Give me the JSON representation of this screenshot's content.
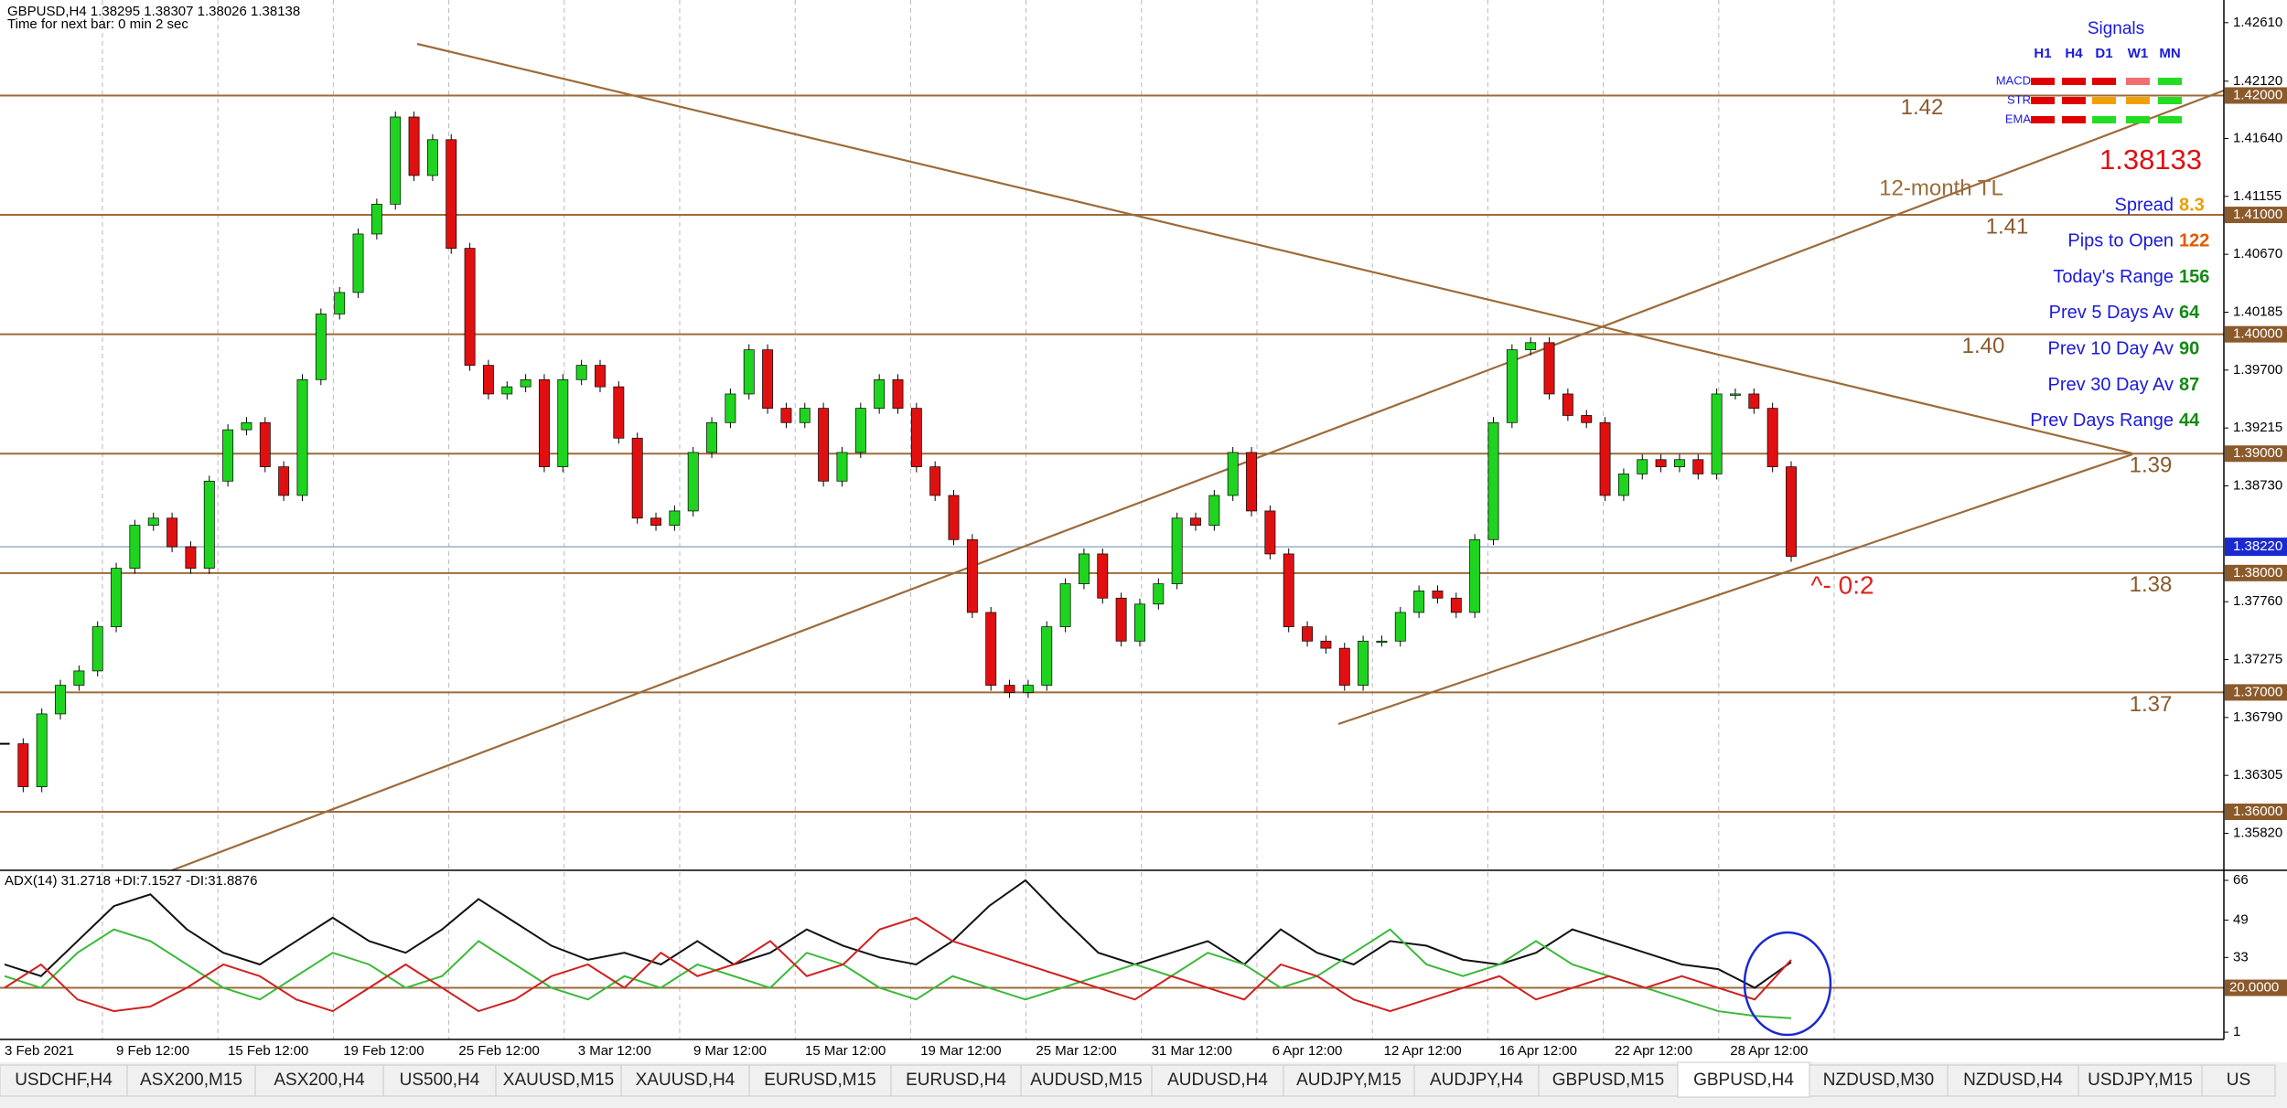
{
  "header": {
    "symbol_line": "GBPUSD,H4  1.38295 1.38307 1.38026 1.38138",
    "timer": "Time for next bar: 0 min 2 sec"
  },
  "price": {
    "ylim": [
      1.3551,
      1.428
    ],
    "yticks": [
      {
        "value": 1.4261,
        "label": "1.42610"
      },
      {
        "value": 1.4212,
        "label": "1.42120"
      },
      {
        "value": 1.4164,
        "label": "1.41640"
      },
      {
        "value": 1.41155,
        "label": "1.41155"
      },
      {
        "value": 1.4067,
        "label": "1.40670"
      },
      {
        "value": 1.40185,
        "label": "1.40185"
      },
      {
        "value": 1.397,
        "label": "1.39700"
      },
      {
        "value": 1.39215,
        "label": "1.39215"
      },
      {
        "value": 1.3873,
        "label": "1.38730"
      },
      {
        "value": 1.3776,
        "label": "1.37760"
      },
      {
        "value": 1.37275,
        "label": "1.37275"
      },
      {
        "value": 1.3679,
        "label": "1.36790"
      },
      {
        "value": 1.36305,
        "label": "1.36305"
      },
      {
        "value": 1.3582,
        "label": "1.35820"
      }
    ],
    "levels": [
      {
        "value": 1.42,
        "label": "1.42000",
        "note": "1.42"
      },
      {
        "value": 1.41,
        "label": "1.41000",
        "note": "1.41"
      },
      {
        "value": 1.4,
        "label": "1.40000",
        "note": "1.40"
      },
      {
        "value": 1.39,
        "label": "1.39000",
        "note": "1.39"
      },
      {
        "value": 1.38,
        "label": "1.38000",
        "note": "1.38"
      },
      {
        "value": 1.37,
        "label": "1.37000",
        "note": "1.37"
      },
      {
        "value": 1.36,
        "label": "1.36000"
      }
    ],
    "quote": {
      "value": 1.3822,
      "label": "1.38220"
    },
    "closes": [
      1.3657,
      1.3621,
      1.3682,
      1.3706,
      1.3718,
      1.3755,
      1.3804,
      1.384,
      1.3846,
      1.3822,
      1.3804,
      1.3877,
      1.392,
      1.3926,
      1.3889,
      1.3865,
      1.3962,
      1.4017,
      1.4035,
      1.4084,
      1.4109,
      1.4182,
      1.4133,
      1.4163,
      1.4072,
      1.3974,
      1.395,
      1.3956,
      1.3962,
      1.3889,
      1.3962,
      1.3974,
      1.3956,
      1.3913,
      1.3846,
      1.384,
      1.3852,
      1.3901,
      1.3926,
      1.395,
      1.3987,
      1.3938,
      1.3926,
      1.3938,
      1.3877,
      1.3901,
      1.3938,
      1.3962,
      1.3938,
      1.3889,
      1.3865,
      1.3828,
      1.3767,
      1.3706,
      1.37,
      1.3706,
      1.3755,
      1.3791,
      1.3816,
      1.3779,
      1.3743,
      1.3774,
      1.3791,
      1.3846,
      1.384,
      1.3865,
      1.3901,
      1.3852,
      1.3816,
      1.3755,
      1.3743,
      1.3737,
      1.3706,
      1.3743,
      1.3743,
      1.3767,
      1.3785,
      1.3779,
      1.3767,
      1.3828,
      1.3926,
      1.3987,
      1.3993,
      1.395,
      1.3932,
      1.3926,
      1.3865,
      1.3883,
      1.3895,
      1.3889,
      1.3895,
      1.3883,
      1.395,
      1.395,
      1.3938,
      1.3889,
      1.3814
    ]
  },
  "annotations": {
    "trendline": "12-month TL",
    "ratio": "^- 0:2"
  },
  "time_labels": [
    "3 Feb 2021",
    "9 Feb 12:00",
    "15 Feb 12:00",
    "19 Feb 12:00",
    "25 Feb 12:00",
    "3 Mar 12:00",
    "9 Mar 12:00",
    "15 Mar 12:00",
    "19 Mar 12:00",
    "25 Mar 12:00",
    "31 Mar 12:00",
    "6 Apr 12:00",
    "12 Apr 12:00",
    "16 Apr 12:00",
    "22 Apr 12:00",
    "28 Apr 12:00"
  ],
  "info": {
    "current_price": 1.38133,
    "rows": [
      {
        "label": "Spread",
        "value": 8.3,
        "color": "#e8a000"
      },
      {
        "label": "Pips to Open",
        "value": 122,
        "color": "#e05a00"
      },
      {
        "label": "Today's Range",
        "value": 156,
        "color": "#138a13"
      },
      {
        "label": "Prev 5 Days Av",
        "value": 64,
        "color": "#138a13"
      },
      {
        "label": "Prev 10 Day Av",
        "value": 90,
        "color": "#138a13"
      },
      {
        "label": "Prev 30 Day Av",
        "value": 87,
        "color": "#138a13"
      },
      {
        "label": "Prev Days Range",
        "value": 44,
        "color": "#138a13"
      }
    ]
  },
  "signals": {
    "title": "Signals",
    "columns": [
      "H1",
      "H4",
      "D1",
      "W1",
      "MN"
    ],
    "rows": [
      {
        "label": "MACD",
        "colors": [
          "#e00000",
          "#e00000",
          "#e00000",
          "#f07070",
          "#22dd22"
        ]
      },
      {
        "label": "STR",
        "colors": [
          "#e00000",
          "#e00000",
          "#f0a000",
          "#f0a000",
          "#22dd22"
        ]
      },
      {
        "label": "EMA",
        "colors": [
          "#e00000",
          "#e00000",
          "#22dd22",
          "#22dd22",
          "#22dd22"
        ]
      }
    ]
  },
  "indicator": {
    "label": "ADX(14) 31.2718 +DI:7.1527 -DI:31.8876",
    "ylim": [
      -2.1,
      70.3
    ],
    "yticks": [
      66,
      49,
      33,
      1
    ],
    "level": {
      "value": 20,
      "label": "20.0000"
    },
    "adx": [
      30,
      25,
      40,
      55,
      60,
      45,
      35,
      30,
      40,
      50,
      40,
      35,
      45,
      58,
      48,
      38,
      32,
      35,
      30,
      40,
      30,
      35,
      45,
      38,
      33,
      30,
      40,
      55,
      66,
      50,
      35,
      30,
      35,
      40,
      30,
      45,
      35,
      30,
      40,
      38,
      32,
      30,
      35,
      45,
      40,
      35,
      30,
      28,
      20,
      31
    ],
    "plus_di": [
      25,
      20,
      35,
      45,
      40,
      30,
      20,
      15,
      25,
      35,
      30,
      20,
      25,
      40,
      30,
      20,
      15,
      25,
      20,
      30,
      25,
      20,
      35,
      30,
      20,
      15,
      25,
      20,
      15,
      20,
      25,
      30,
      25,
      35,
      30,
      20,
      25,
      35,
      45,
      30,
      25,
      30,
      40,
      30,
      25,
      20,
      15,
      10,
      8,
      7
    ],
    "minus_di": [
      20,
      30,
      15,
      10,
      12,
      20,
      30,
      25,
      15,
      10,
      20,
      30,
      20,
      10,
      15,
      25,
      30,
      20,
      35,
      25,
      30,
      40,
      25,
      30,
      45,
      50,
      40,
      35,
      30,
      25,
      20,
      15,
      25,
      20,
      15,
      30,
      25,
      15,
      10,
      15,
      20,
      25,
      15,
      20,
      25,
      20,
      25,
      20,
      15,
      32
    ]
  },
  "tabs": {
    "items": [
      "USDCHF,H4",
      "ASX200,M15",
      "ASX200,H4",
      "US500,H4",
      "XAUUSD,M15",
      "XAUUSD,H4",
      "EURUSD,M15",
      "EURUSD,H4",
      "AUDUSD,M15",
      "AUDUSD,H4",
      "AUDJPY,M15",
      "AUDJPY,H4",
      "GBPUSD,M15",
      "GBPUSD,H4",
      "NZDUSD,M30",
      "NZDUSD,H4",
      "USDJPY,M15",
      "US"
    ],
    "active": 13
  }
}
